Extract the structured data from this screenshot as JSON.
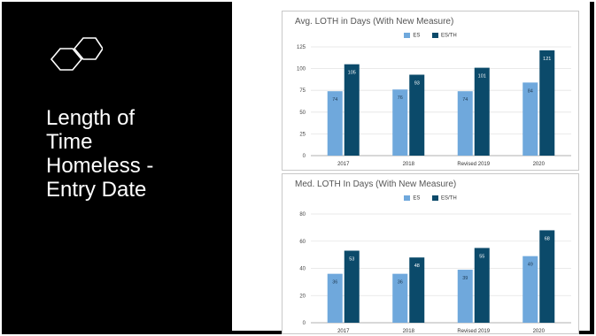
{
  "slide": {
    "title_lines": [
      "Length of",
      "Time",
      "Homeless -",
      "Entry Date"
    ],
    "logo_icon": "hexagon-pair-icon"
  },
  "colors": {
    "es": "#6fa8dc",
    "es_th": "#0b4a6a",
    "background": "#000000"
  },
  "chart_data": [
    {
      "type": "bar",
      "title": "Avg. LOTH in Days (With New Measure)",
      "categories": [
        "2017",
        "2018",
        "Revised 2019",
        "2020"
      ],
      "series": [
        {
          "name": "ES",
          "values": [
            74,
            76,
            74,
            84
          ]
        },
        {
          "name": "ES/TH",
          "values": [
            105,
            93,
            101,
            121
          ]
        }
      ],
      "ylim": [
        0,
        125
      ],
      "yticks": [
        0,
        25,
        50,
        75,
        100,
        125
      ],
      "grid": true,
      "legend": "top-center"
    },
    {
      "type": "bar",
      "title": "Med. LOTH In Days (With New Measure)",
      "categories": [
        "2017",
        "2018",
        "Revised 2019",
        "2020"
      ],
      "series": [
        {
          "name": "ES",
          "values": [
            36,
            36,
            39,
            49
          ]
        },
        {
          "name": "ES/TH",
          "values": [
            53,
            48,
            55,
            68
          ]
        }
      ],
      "ylim": [
        0,
        80
      ],
      "yticks": [
        0,
        20,
        40,
        60,
        80
      ],
      "grid": true,
      "legend": "top-center"
    }
  ]
}
